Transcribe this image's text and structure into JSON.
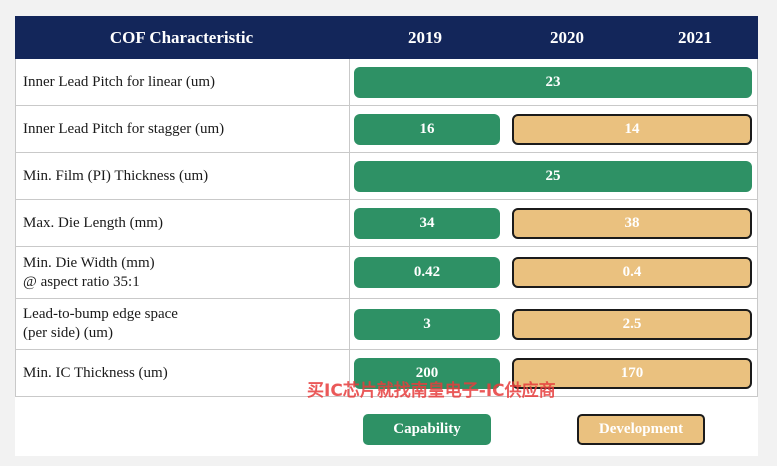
{
  "header": {
    "characteristic": "COF Characteristic",
    "years": [
      "2019",
      "2020",
      "2021"
    ]
  },
  "rows": [
    {
      "label": "Inner Lead Pitch for linear (um)",
      "capability": "23",
      "development": ""
    },
    {
      "label": "Inner Lead Pitch for stagger (um)",
      "capability": "16",
      "development": "14"
    },
    {
      "label": "Min. Film (PI) Thickness  (um)",
      "capability": "25",
      "development": ""
    },
    {
      "label": "Max. Die Length  (mm)",
      "capability": "34",
      "development": "38"
    },
    {
      "label": "Min. Die Width  (mm)\n@ aspect ratio 35:1",
      "capability": "0.42",
      "development": "0.4"
    },
    {
      "label": "Lead-to-bump  edge space\n (per side) (um)",
      "capability": "3",
      "development": "2.5"
    },
    {
      "label": "Min. IC Thickness  (um)",
      "capability": "200",
      "development": "170"
    }
  ],
  "legend": {
    "capability": "Capability",
    "development": "Development"
  },
  "watermark": "买IC芯片就找南皇电子-IC供应商",
  "colors": {
    "header_bg": "#13265a",
    "capability": "#2e9165",
    "development": "#eac17f"
  }
}
